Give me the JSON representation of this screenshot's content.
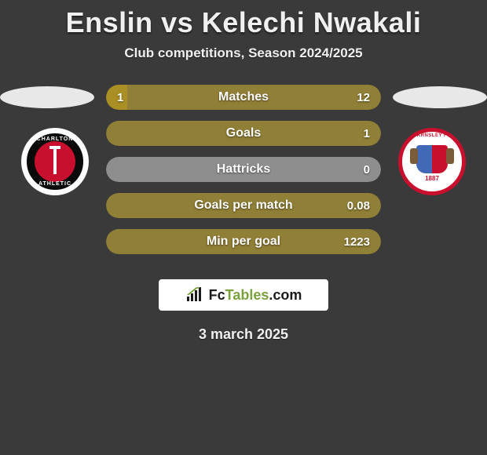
{
  "title": "Enslin vs Kelechi Nwakali",
  "subtitle": "Club competitions, Season 2024/2025",
  "date": "3 march 2025",
  "watermark": {
    "fc": "Fc",
    "tables": "Tables",
    "com": ".com"
  },
  "colors": {
    "background": "#3a3a3a",
    "player1": "#aa8f24",
    "player2": "#907f36",
    "empty": "#8e8e8e",
    "charlton_outer": "#0a0a0a",
    "charlton_ring": "#ffffff",
    "charlton_inner": "#c8102e",
    "barnsley_ring": "#c8102e",
    "barnsley_bg": "#ffffff"
  },
  "left_club": {
    "name": "CHARLTON",
    "sub": "ATHLETIC"
  },
  "right_club": {
    "name": "BARNSLEY FC",
    "year": "1887"
  },
  "stats": [
    {
      "label": "Matches",
      "left_val": "1",
      "right_val": "12",
      "left_pct": 7.7,
      "right_pct": 92.3,
      "left_color": "#aa8f24",
      "right_color": "#907f36"
    },
    {
      "label": "Goals",
      "left_val": "",
      "right_val": "1",
      "left_pct": 0,
      "right_pct": 100,
      "left_color": "#aa8f24",
      "right_color": "#907f36"
    },
    {
      "label": "Hattricks",
      "left_val": "",
      "right_val": "0",
      "left_pct": 0,
      "right_pct": 0,
      "left_color": "#8e8e8e",
      "right_color": "#8e8e8e"
    },
    {
      "label": "Goals per match",
      "left_val": "",
      "right_val": "0.08",
      "left_pct": 0,
      "right_pct": 100,
      "left_color": "#aa8f24",
      "right_color": "#907f36"
    },
    {
      "label": "Min per goal",
      "left_val": "",
      "right_val": "1223",
      "left_pct": 0,
      "right_pct": 100,
      "left_color": "#aa8f24",
      "right_color": "#907f36"
    }
  ]
}
